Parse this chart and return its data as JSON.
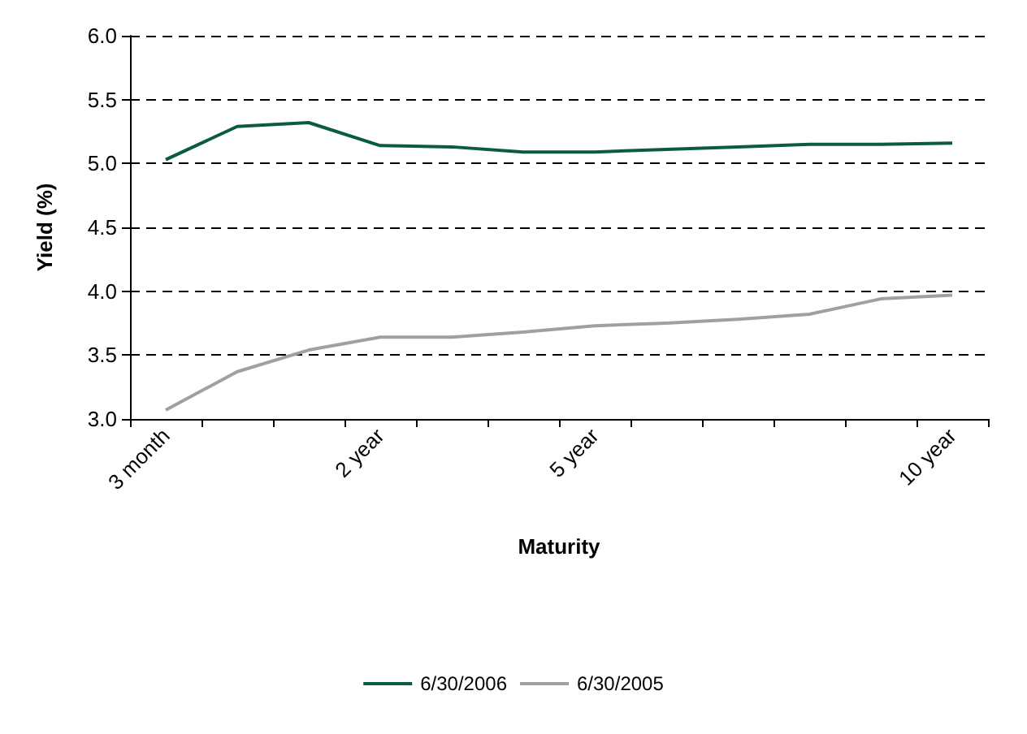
{
  "chart_data": {
    "type": "line",
    "xlabel": "Maturity",
    "ylabel": "Yield (%)",
    "categories": [
      "3 month",
      null,
      null,
      "2 year",
      null,
      null,
      "5 year",
      null,
      null,
      null,
      null,
      "10 year"
    ],
    "series": [
      {
        "name": "6/30/2006",
        "color": "#0b5a45",
        "values": [
          5.03,
          5.29,
          5.32,
          5.14,
          5.13,
          5.09,
          5.09,
          5.11,
          5.13,
          5.15,
          5.15,
          5.16
        ]
      },
      {
        "name": "6/30/2005",
        "color": "#a0a0a0",
        "values": [
          3.07,
          3.37,
          3.54,
          3.64,
          3.64,
          3.68,
          3.73,
          3.75,
          3.78,
          3.82,
          3.94,
          3.97
        ]
      }
    ],
    "ylim": [
      3.0,
      6.0
    ],
    "yticks": [
      {
        "value": 3.0,
        "label": "3.0"
      },
      {
        "value": 3.5,
        "label": "3.5"
      },
      {
        "value": 4.0,
        "label": "4.0"
      },
      {
        "value": 4.5,
        "label": "4.5"
      },
      {
        "value": 5.0,
        "label": "5.0"
      },
      {
        "value": 5.5,
        "label": "5.5"
      },
      {
        "value": 6.0,
        "label": "6.0"
      }
    ],
    "grid": "y",
    "legend": "bottom",
    "marker": "none",
    "line_style": "solid"
  }
}
